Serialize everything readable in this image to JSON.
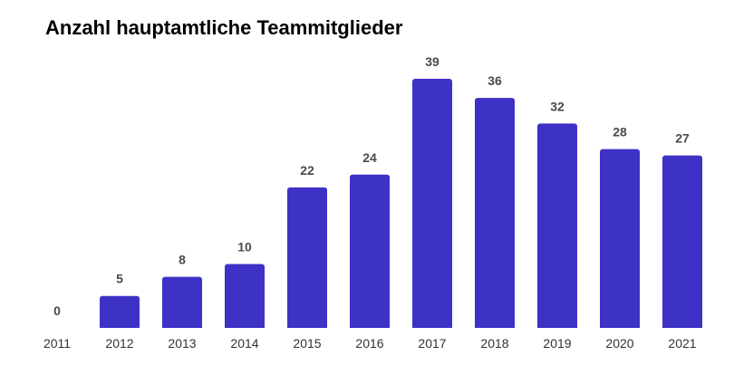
{
  "chart_data": {
    "type": "bar",
    "title": "Anzahl hauptamtliche Teammitglieder",
    "categories": [
      "2011",
      "2012",
      "2013",
      "2014",
      "2015",
      "2016",
      "2017",
      "2018",
      "2019",
      "2020",
      "2021"
    ],
    "values": [
      0,
      5,
      8,
      10,
      22,
      24,
      39,
      36,
      32,
      28,
      27
    ],
    "xlabel": "",
    "ylabel": "",
    "ylim": [
      0,
      39
    ],
    "grid": false,
    "legend": "none",
    "bar_color": "#3d31c6",
    "show_data_labels": true
  }
}
